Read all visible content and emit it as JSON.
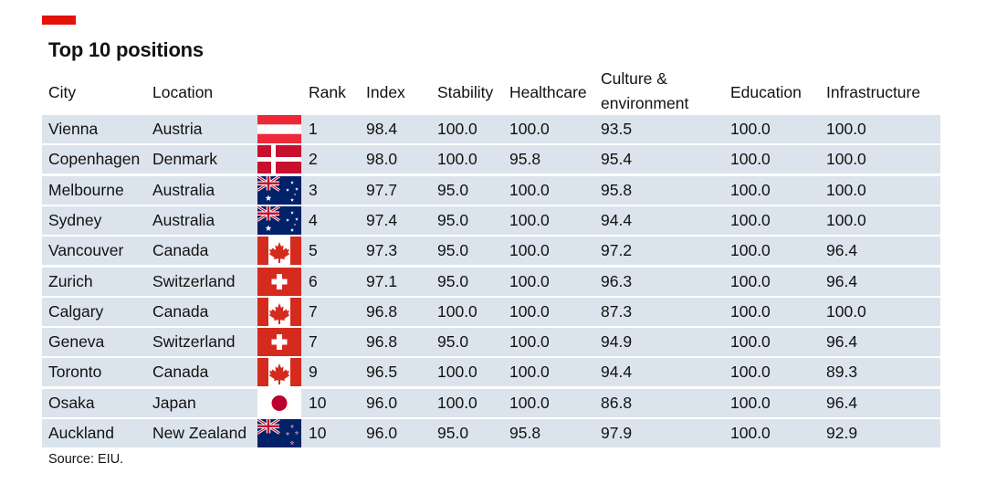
{
  "title": "Top 10 positions",
  "source": "Source: EIU.",
  "colors": {
    "accent": "#e3120b",
    "row_band": "#dbe4ec",
    "flag_red": "#d52b1e",
    "flag_blue": "#012169"
  },
  "columns": {
    "city": "City",
    "location": "Location",
    "rank": "Rank",
    "index": "Index",
    "stability": "Stability",
    "healthcare": "Healthcare",
    "culture_line1": "Culture &",
    "culture_line2": "environment",
    "education": "Education",
    "infrastructure": "Infrastructure"
  },
  "chart_data": {
    "type": "table",
    "title": "Top 10 positions",
    "columns": [
      "City",
      "Location",
      "Rank",
      "Index",
      "Stability",
      "Healthcare",
      "Culture & environment",
      "Education",
      "Infrastructure"
    ],
    "rows": [
      {
        "city": "Vienna",
        "location": "Austria",
        "flag": "austria-flag-icon",
        "rank": "1",
        "index": "98.4",
        "stability": "100.0",
        "healthcare": "100.0",
        "culture": "93.5",
        "education": "100.0",
        "infrastructure": "100.0"
      },
      {
        "city": "Copenhagen",
        "location": "Denmark",
        "flag": "denmark-flag-icon",
        "rank": "2",
        "index": "98.0",
        "stability": "100.0",
        "healthcare": "95.8",
        "culture": "95.4",
        "education": "100.0",
        "infrastructure": "100.0"
      },
      {
        "city": "Melbourne",
        "location": "Australia",
        "flag": "australia-flag-icon",
        "rank": "3",
        "index": "97.7",
        "stability": "95.0",
        "healthcare": "100.0",
        "culture": "95.8",
        "education": "100.0",
        "infrastructure": "100.0"
      },
      {
        "city": "Sydney",
        "location": "Australia",
        "flag": "australia-flag-icon",
        "rank": "4",
        "index": "97.4",
        "stability": "95.0",
        "healthcare": "100.0",
        "culture": "94.4",
        "education": "100.0",
        "infrastructure": "100.0"
      },
      {
        "city": "Vancouver",
        "location": "Canada",
        "flag": "canada-flag-icon",
        "rank": "5",
        "index": "97.3",
        "stability": "95.0",
        "healthcare": "100.0",
        "culture": "97.2",
        "education": "100.0",
        "infrastructure": "96.4"
      },
      {
        "city": "Zurich",
        "location": "Switzerland",
        "flag": "switzerland-flag-icon",
        "rank": "6",
        "index": "97.1",
        "stability": "95.0",
        "healthcare": "100.0",
        "culture": "96.3",
        "education": "100.0",
        "infrastructure": "96.4"
      },
      {
        "city": "Calgary",
        "location": "Canada",
        "flag": "canada-flag-icon",
        "rank": "7",
        "index": "96.8",
        "stability": "100.0",
        "healthcare": "100.0",
        "culture": "87.3",
        "education": "100.0",
        "infrastructure": "100.0"
      },
      {
        "city": "Geneva",
        "location": "Switzerland",
        "flag": "switzerland-flag-icon",
        "rank": "7",
        "index": "96.8",
        "stability": "95.0",
        "healthcare": "100.0",
        "culture": "94.9",
        "education": "100.0",
        "infrastructure": "96.4"
      },
      {
        "city": "Toronto",
        "location": "Canada",
        "flag": "canada-flag-icon",
        "rank": "9",
        "index": "96.5",
        "stability": "100.0",
        "healthcare": "100.0",
        "culture": "94.4",
        "education": "100.0",
        "infrastructure": "89.3"
      },
      {
        "city": "Osaka",
        "location": "Japan",
        "flag": "japan-flag-icon",
        "rank": "10",
        "index": "96.0",
        "stability": "100.0",
        "healthcare": "100.0",
        "culture": "86.8",
        "education": "100.0",
        "infrastructure": "96.4"
      },
      {
        "city": "Auckland",
        "location": "New Zealand",
        "flag": "new-zealand-flag-icon",
        "rank": "10",
        "index": "96.0",
        "stability": "95.0",
        "healthcare": "95.8",
        "culture": "97.9",
        "education": "100.0",
        "infrastructure": "92.9"
      }
    ]
  }
}
